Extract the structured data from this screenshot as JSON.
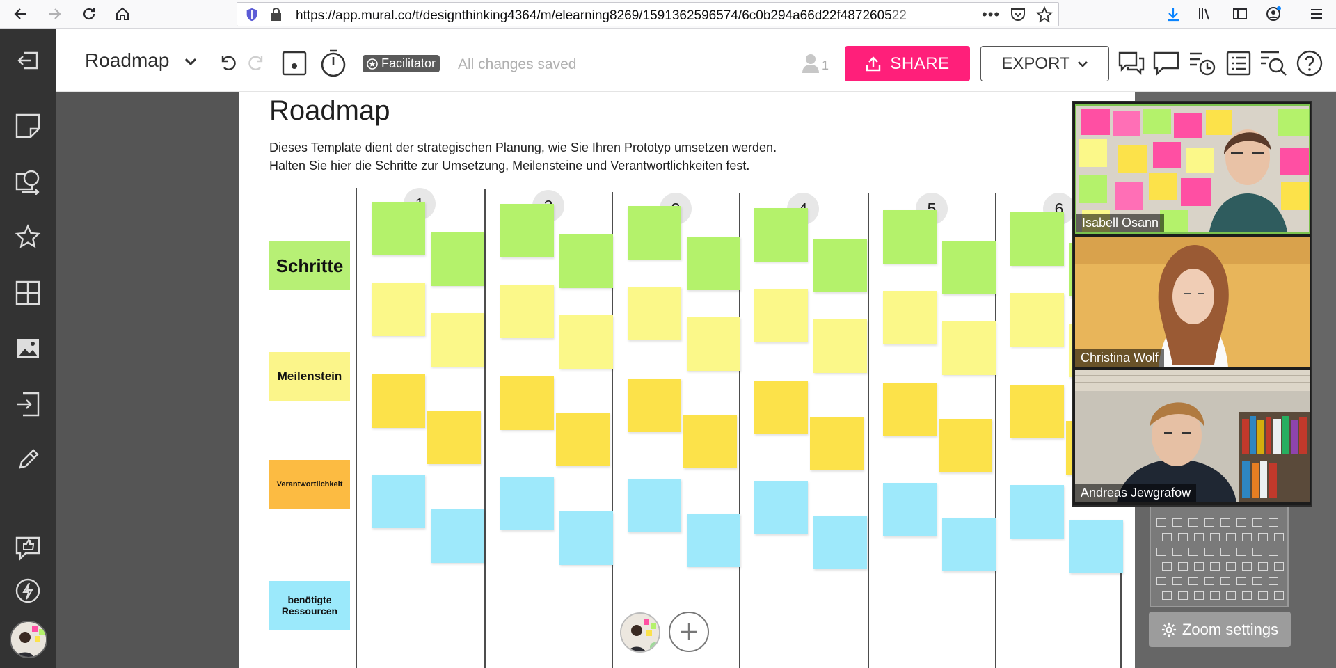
{
  "browser": {
    "url_main": "https://app.mural.co/t/designthinking4364/m/elearning8269/1591362596574/6c0b294a66d22f4872605",
    "url_faded": "22"
  },
  "app": {
    "mural_title": "Roadmap",
    "facilitator_label": "Facilitator",
    "save_status": "All changes saved",
    "participant_count": "1",
    "share_label": "SHARE",
    "export_label": "EXPORT"
  },
  "board": {
    "title": "Roadmap",
    "description_line1": "Dieses Template dient der strategischen Planung, wie Sie Ihren Prototyp umsetzen werden.",
    "description_line2": "Halten Sie hier die Schritte zur Umsetzung, Meilensteine und Verantwortlichkeiten fest.",
    "columns": [
      "1",
      "2",
      "3",
      "4",
      "5",
      "6"
    ],
    "rows": [
      {
        "label": "Schritte",
        "label_color": "#b7f075",
        "sticky_color": "#b4f26b"
      },
      {
        "label": "Meilenstein",
        "label_color": "#fbf58a",
        "sticky_color": "#fbf889"
      },
      {
        "label": "Verantwortlichkeit",
        "label_color": "#fcbb42",
        "sticky_color": "#fce24a"
      },
      {
        "label": "benötigte Ressourcen",
        "label_color": "#9be9fb",
        "sticky_color": "#9ee9fb"
      }
    ]
  },
  "zoom": {
    "settings_label": "Zoom settings",
    "participants": [
      "Isabell Osann",
      "Christina Wolf",
      "Andreas Jewgrafow"
    ]
  },
  "colors": {
    "accent_share": "#ff1f7a",
    "sidebar": "#333333",
    "canvas": "#555555"
  }
}
